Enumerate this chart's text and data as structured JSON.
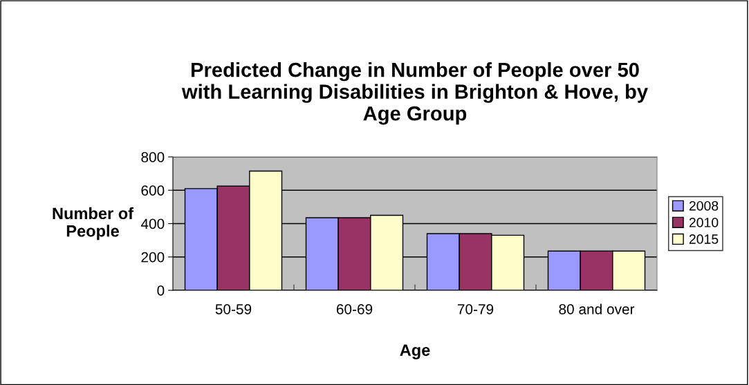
{
  "chart_data": {
    "type": "bar",
    "title": "Predicted Change in Number of People over 50\nwith Learning Disabilities in Brighton & Hove, by\nAge Group",
    "xlabel": "Age",
    "ylabel": "Number of\nPeople",
    "categories": [
      "50-59",
      "60-69",
      "70-79",
      "80 and over"
    ],
    "series": [
      {
        "name": "2008",
        "color": "#9999ff",
        "values": [
          610,
          435,
          340,
          235
        ]
      },
      {
        "name": "2010",
        "color": "#993366",
        "values": [
          625,
          435,
          340,
          235
        ]
      },
      {
        "name": "2015",
        "color": "#ffffcc",
        "values": [
          715,
          450,
          330,
          235
        ]
      }
    ],
    "ylim": [
      0,
      800
    ],
    "yticks": [
      0,
      200,
      400,
      600,
      800
    ],
    "grid": "y",
    "legend": "right"
  }
}
